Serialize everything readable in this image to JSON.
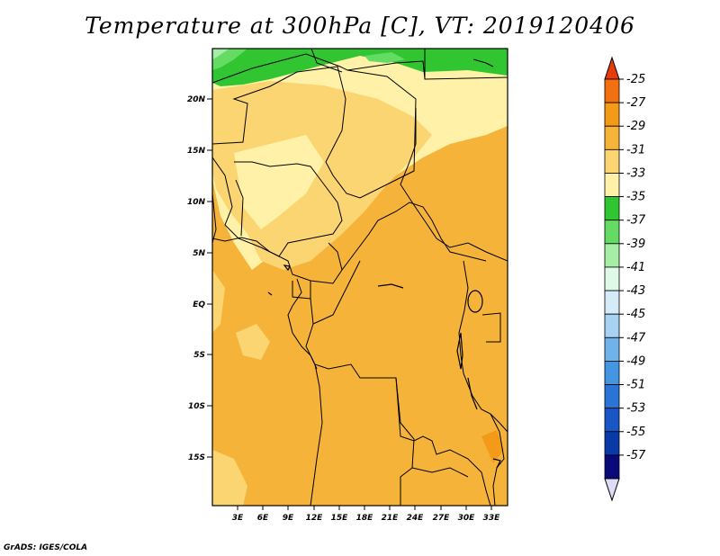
{
  "title": "Temperature at 300hPa [C], VT: 2019120406",
  "credit": "GrADS: IGES/COLA",
  "map": {
    "lat_labels": [
      "20N",
      "15N",
      "10N",
      "5N",
      "EQ",
      "5S",
      "10S",
      "15S"
    ],
    "lon_labels": [
      "3E",
      "6E",
      "9E",
      "12E",
      "15E",
      "18E",
      "21E",
      "24E",
      "27E",
      "30E",
      "33E"
    ]
  },
  "colorbar": {
    "labels": [
      "-25",
      "-27",
      "-29",
      "-31",
      "-33",
      "-35",
      "-37",
      "-39",
      "-41",
      "-43",
      "-45",
      "-47",
      "-49",
      "-51",
      "-53",
      "-55",
      "-57"
    ],
    "colors": [
      "#e83c0a",
      "#f27011",
      "#f39b18",
      "#f5b33a",
      "#fbd572",
      "#fff2a8",
      "#32c532",
      "#64dc64",
      "#a6eea6",
      "#e0f8e8",
      "#d6ebf8",
      "#a8d2f2",
      "#70b2ea",
      "#4495e2",
      "#2a74d6",
      "#1756c4",
      "#0a3aa8",
      "#09097a",
      "#dcdcf5"
    ]
  }
}
